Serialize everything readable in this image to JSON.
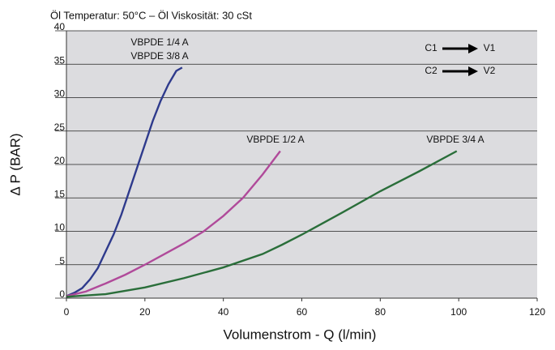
{
  "chart_data": {
    "type": "line",
    "title": "Öl Temperatur: 50°C – Öl Viskosität: 30 cSt",
    "xlabel": "Volumenstrom - Q (l/min)",
    "ylabel": "Δ P (BAR)",
    "xlim": [
      0,
      120
    ],
    "xticks": [
      0,
      20,
      40,
      60,
      80,
      100,
      120
    ],
    "ylim": [
      0,
      40
    ],
    "yticks": [
      0,
      5,
      10,
      15,
      20,
      25,
      30,
      35,
      40
    ],
    "grid": true,
    "annotations": [
      "VBPDE 1/4 A",
      "VBPDE 3/8 A",
      "VBPDE 1/2 A",
      "VBPDE 3/4 A",
      "C1",
      "V1",
      "C2",
      "V2"
    ],
    "series": [
      {
        "color": "#2e3a8c",
        "x": [
          0,
          2,
          4,
          6,
          8,
          10,
          12,
          14,
          16,
          18,
          20,
          22,
          24,
          26,
          28,
          29.5
        ],
        "values": [
          0.3,
          0.8,
          1.5,
          2.8,
          4.5,
          7,
          9.5,
          12.5,
          16,
          19.5,
          23,
          26.5,
          29.5,
          32,
          34,
          34.5
        ]
      },
      {
        "color": "#b04a9a",
        "x": [
          0,
          5,
          10,
          15,
          20,
          25,
          30,
          35,
          40,
          45,
          50,
          54.5
        ],
        "values": [
          0.3,
          1,
          2.2,
          3.5,
          5,
          6.6,
          8.2,
          10,
          12.3,
          15,
          18.5,
          22
        ]
      },
      {
        "color": "#2a6e3a",
        "x": [
          0,
          10,
          20,
          30,
          40,
          50,
          55,
          60,
          70,
          80,
          90,
          99.5
        ],
        "values": [
          0.2,
          0.6,
          1.6,
          3,
          4.6,
          6.6,
          8,
          9.5,
          12.7,
          16,
          19,
          22
        ]
      }
    ]
  }
}
